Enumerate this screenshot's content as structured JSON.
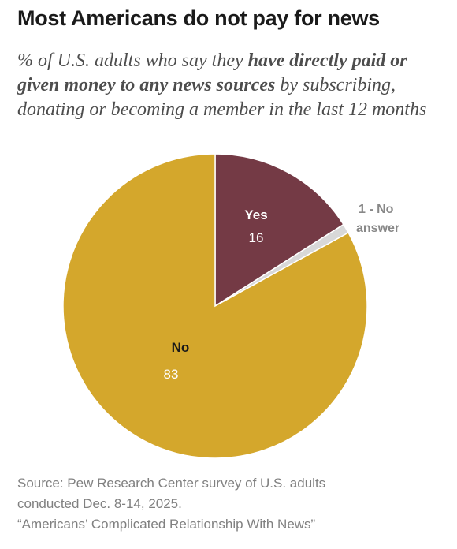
{
  "title": "Most Americans do not pay for news",
  "subtitle": {
    "pre": "% of U.S. adults who say they ",
    "bold": "have directly paid or given money to any news sources",
    "post": " by subscribing, donating or becoming a member in the last 12 months"
  },
  "source": {
    "line1": "Source: Pew Research Center survey of U.S. adults",
    "line2": "conducted Dec. 8-14, 2025.",
    "line3": "“Americans’ Complicated Relationship With News”"
  },
  "chart_data": {
    "type": "pie",
    "slices": [
      {
        "label": "Yes",
        "value": 16,
        "display": "16",
        "color": "#743a45"
      },
      {
        "label": "No answer",
        "value": 1,
        "display": "1 - No answer",
        "color": "#d8d8d8"
      },
      {
        "label": "No",
        "value": 83,
        "display": "83",
        "color": "#d4a72c"
      }
    ],
    "labels": {
      "yes_cat": "Yes",
      "yes_val": "16",
      "na_line1": "1 - No",
      "na_line2": "answer",
      "no_cat": "No",
      "no_val": "83"
    }
  }
}
